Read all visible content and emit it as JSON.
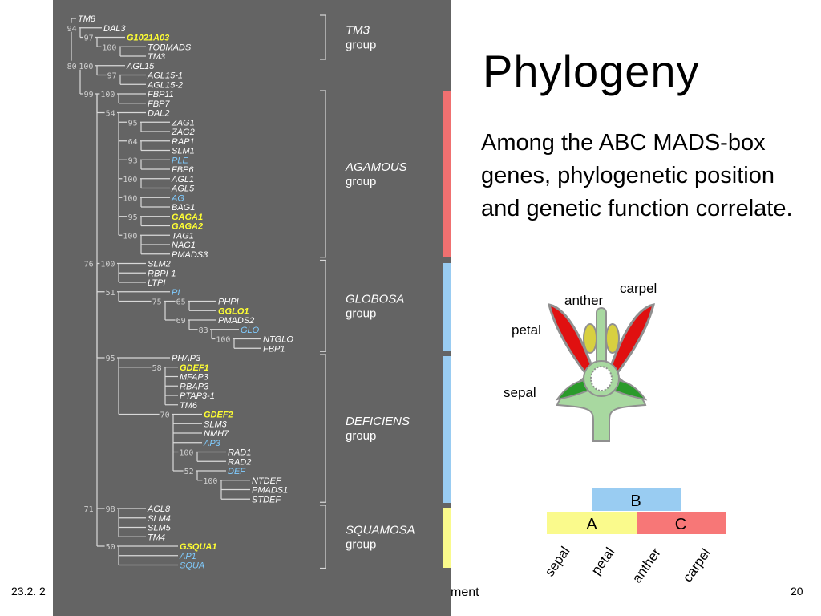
{
  "slide": {
    "title": "Phylogeny",
    "body": "Among the ABC MADS-box genes, phylogenetic position and genetic function correlate.",
    "footer_date": "23.2. 2",
    "footer_title": "ment",
    "page_number": "20"
  },
  "tree": {
    "leaves": [
      {
        "id": "TM8",
        "name": "TM8",
        "color": "white"
      },
      {
        "id": "DAL3",
        "name": "DAL3",
        "color": "white"
      },
      {
        "id": "G1021A03",
        "name": "G1021A03",
        "color": "yellow"
      },
      {
        "id": "TOBMADS",
        "name": "TOBMADS",
        "color": "white"
      },
      {
        "id": "TM3",
        "name": "TM3",
        "color": "white"
      },
      {
        "id": "AGL15",
        "name": "AGL15",
        "color": "white"
      },
      {
        "id": "AGL15-1",
        "name": "AGL15-1",
        "color": "white"
      },
      {
        "id": "AGL15-2",
        "name": "AGL15-2",
        "color": "white"
      },
      {
        "id": "FBP11",
        "name": "FBP11",
        "color": "white"
      },
      {
        "id": "FBP7",
        "name": "FBP7",
        "color": "white"
      },
      {
        "id": "DAL2",
        "name": "DAL2",
        "color": "white"
      },
      {
        "id": "ZAG1",
        "name": "ZAG1",
        "color": "white"
      },
      {
        "id": "ZAG2",
        "name": "ZAG2",
        "color": "white"
      },
      {
        "id": "RAP1",
        "name": "RAP1",
        "color": "white"
      },
      {
        "id": "SLM1",
        "name": "SLM1",
        "color": "white"
      },
      {
        "id": "PLE",
        "name": "PLE",
        "color": "blue"
      },
      {
        "id": "FBP6",
        "name": "FBP6",
        "color": "white"
      },
      {
        "id": "AGL1",
        "name": "AGL1",
        "color": "white"
      },
      {
        "id": "AGL5",
        "name": "AGL5",
        "color": "white"
      },
      {
        "id": "AG",
        "name": "AG",
        "color": "blue"
      },
      {
        "id": "BAG1",
        "name": "BAG1",
        "color": "white"
      },
      {
        "id": "GAGA1",
        "name": "GAGA1",
        "color": "yellow"
      },
      {
        "id": "GAGA2",
        "name": "GAGA2",
        "color": "yellow"
      },
      {
        "id": "TAG1",
        "name": "TAG1",
        "color": "white"
      },
      {
        "id": "NAG1",
        "name": "NAG1",
        "color": "white"
      },
      {
        "id": "PMADS3",
        "name": "PMADS3",
        "color": "white"
      },
      {
        "id": "SLM2",
        "name": "SLM2",
        "color": "white"
      },
      {
        "id": "RBPI-1",
        "name": "RBPI-1",
        "color": "white"
      },
      {
        "id": "LTPI",
        "name": "LTPI",
        "color": "white"
      },
      {
        "id": "PI",
        "name": "PI",
        "color": "blue"
      },
      {
        "id": "PHPI",
        "name": "PHPI",
        "color": "white"
      },
      {
        "id": "GGLO1",
        "name": "GGLO1",
        "color": "yellow"
      },
      {
        "id": "PMADS2",
        "name": "PMADS2",
        "color": "white"
      },
      {
        "id": "GLO",
        "name": "GLO",
        "color": "blue"
      },
      {
        "id": "NTGLO",
        "name": "NTGLO",
        "color": "white"
      },
      {
        "id": "FBP1",
        "name": "FBP1",
        "color": "white"
      },
      {
        "id": "PHAP3",
        "name": "PHAP3",
        "color": "white"
      },
      {
        "id": "GDEF1",
        "name": "GDEF1",
        "color": "yellow"
      },
      {
        "id": "MFAP3",
        "name": "MFAP3",
        "color": "white"
      },
      {
        "id": "RBAP3",
        "name": "RBAP3",
        "color": "white"
      },
      {
        "id": "PTAP3-1",
        "name": "PTAP3-1",
        "color": "white"
      },
      {
        "id": "TM6",
        "name": "TM6",
        "color": "white"
      },
      {
        "id": "GDEF2",
        "name": "GDEF2",
        "color": "yellow"
      },
      {
        "id": "SLM3",
        "name": "SLM3",
        "color": "white"
      },
      {
        "id": "NMH7",
        "name": "NMH7",
        "color": "white"
      },
      {
        "id": "AP3",
        "name": "AP3",
        "color": "blue"
      },
      {
        "id": "RAD1",
        "name": "RAD1",
        "color": "white"
      },
      {
        "id": "RAD2",
        "name": "RAD2",
        "color": "white"
      },
      {
        "id": "DEF",
        "name": "DEF",
        "color": "blue"
      },
      {
        "id": "NTDEF",
        "name": "NTDEF",
        "color": "white"
      },
      {
        "id": "PMADS1",
        "name": "PMADS1",
        "color": "white"
      },
      {
        "id": "STDEF",
        "name": "STDEF",
        "color": "white"
      },
      {
        "id": "AGL8",
        "name": "AGL8",
        "color": "white"
      },
      {
        "id": "SLM4",
        "name": "SLM4",
        "color": "white"
      },
      {
        "id": "SLM5",
        "name": "SLM5",
        "color": "white"
      },
      {
        "id": "TM4",
        "name": "TM4",
        "color": "white"
      },
      {
        "id": "GSQUA1",
        "name": "GSQUA1",
        "color": "yellow"
      },
      {
        "id": "AP1",
        "name": "AP1",
        "color": "blue"
      },
      {
        "id": "SQUA",
        "name": "SQUA",
        "color": "blue"
      }
    ],
    "support_values": [
      "94",
      "97",
      "100",
      "80",
      "100",
      "97",
      "99",
      "100",
      "54",
      "95",
      "64",
      "93",
      "100",
      "100",
      "95",
      "100",
      "76",
      "100",
      "51",
      "75",
      "65",
      "69",
      "83",
      "100",
      "95",
      "58",
      "70",
      "100",
      "52",
      "100",
      "71",
      "98",
      "50"
    ],
    "groups": [
      {
        "name": "TM3",
        "suffix": "group",
        "band_color": ""
      },
      {
        "name": "AGAMOUS",
        "suffix": "group",
        "band_color": "#f07070"
      },
      {
        "name": "GLOBOSA",
        "suffix": "group",
        "band_color": "#99ccf2"
      },
      {
        "name": "DEFICIENS",
        "suffix": "group",
        "band_color": "#99ccf2"
      },
      {
        "name": "SQUAMOSA",
        "suffix": "group",
        "band_color": "#fafa8c"
      }
    ],
    "colors": {
      "white": "#ffffff",
      "yellow": "#ffff33",
      "blue": "#80ccff",
      "line": "#d8d8d8",
      "panel": "#646464"
    }
  },
  "flower": {
    "labels": {
      "carpel": "carpel",
      "anther": "anther",
      "petal": "petal",
      "sepal": "sepal"
    },
    "colors": {
      "petal": "#e01010",
      "sepal": "#2a9a2a",
      "stem": "#a8d8a0",
      "anther": "#d8d040",
      "outline": "#909090"
    }
  },
  "abc_model": {
    "boxes": [
      {
        "letter": "B",
        "color": "#99ccf2"
      },
      {
        "letter": "A",
        "color": "#fafa8c"
      },
      {
        "letter": "C",
        "color": "#f77777"
      }
    ],
    "whorls": [
      "sepal",
      "petal",
      "anther",
      "carpel"
    ]
  }
}
